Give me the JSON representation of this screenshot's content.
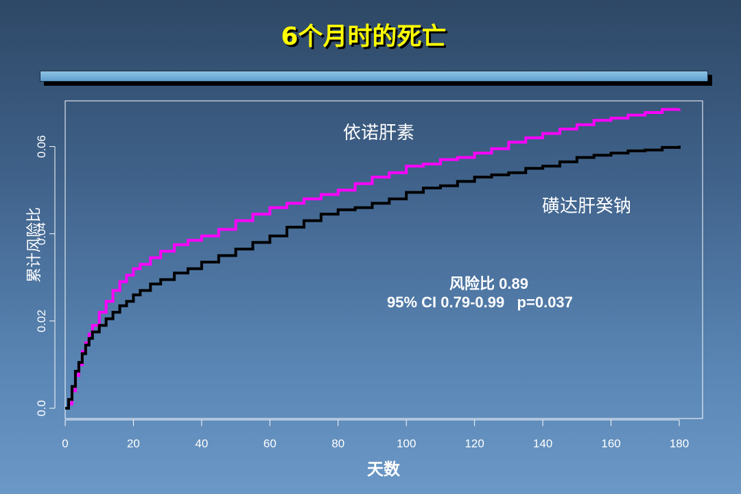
{
  "title": "6个月时的死亡",
  "chart_data": {
    "type": "line",
    "xlabel": "天数",
    "ylabel": "累计风险比",
    "xlim": [
      0,
      180
    ],
    "ylim": [
      0,
      0.07
    ],
    "x_ticks": [
      "0",
      "20",
      "40",
      "60",
      "80",
      "100",
      "120",
      "140",
      "160",
      "180"
    ],
    "x_tick_values": [
      0,
      20,
      40,
      60,
      80,
      100,
      120,
      140,
      160,
      180
    ],
    "y_ticks": [
      "0.0",
      "0.02",
      "0.04",
      "0.06"
    ],
    "y_tick_values": [
      0,
      0.02,
      0.04,
      0.06
    ],
    "grid": false,
    "series": [
      {
        "name": "依诺肝素",
        "color": "#ff00ff",
        "x": [
          0,
          1,
          2,
          3,
          4,
          5,
          6,
          7,
          8,
          10,
          12,
          14,
          16,
          18,
          20,
          22,
          25,
          28,
          32,
          36,
          40,
          45,
          50,
          55,
          60,
          65,
          70,
          75,
          80,
          85,
          90,
          95,
          100,
          105,
          110,
          115,
          120,
          125,
          130,
          135,
          140,
          145,
          150,
          155,
          160,
          165,
          170,
          175,
          180
        ],
        "y": [
          0,
          0.001,
          0.004,
          0.0075,
          0.01,
          0.013,
          0.015,
          0.017,
          0.019,
          0.022,
          0.0245,
          0.027,
          0.029,
          0.0305,
          0.032,
          0.033,
          0.0345,
          0.036,
          0.0375,
          0.0385,
          0.0395,
          0.041,
          0.043,
          0.0445,
          0.046,
          0.047,
          0.048,
          0.049,
          0.05,
          0.0515,
          0.053,
          0.054,
          0.0555,
          0.056,
          0.057,
          0.0575,
          0.0585,
          0.0595,
          0.061,
          0.062,
          0.063,
          0.064,
          0.065,
          0.066,
          0.0665,
          0.0672,
          0.0678,
          0.0685,
          0.0686
        ]
      },
      {
        "name": "磺达肝癸钠",
        "color": "#000000",
        "x": [
          0,
          1,
          2,
          3,
          4,
          5,
          6,
          7,
          8,
          10,
          12,
          14,
          16,
          18,
          20,
          22,
          25,
          28,
          32,
          36,
          40,
          45,
          50,
          55,
          60,
          65,
          70,
          75,
          80,
          85,
          90,
          95,
          100,
          105,
          110,
          115,
          120,
          125,
          130,
          135,
          140,
          145,
          150,
          155,
          160,
          165,
          170,
          175,
          180
        ],
        "y": [
          0,
          0.002,
          0.005,
          0.0085,
          0.0105,
          0.0125,
          0.0145,
          0.016,
          0.0175,
          0.019,
          0.0205,
          0.022,
          0.0235,
          0.0245,
          0.026,
          0.027,
          0.0285,
          0.0295,
          0.031,
          0.032,
          0.0335,
          0.035,
          0.0365,
          0.038,
          0.0395,
          0.0415,
          0.043,
          0.0445,
          0.0455,
          0.046,
          0.047,
          0.048,
          0.0495,
          0.0505,
          0.051,
          0.052,
          0.053,
          0.0535,
          0.054,
          0.055,
          0.0555,
          0.0565,
          0.0575,
          0.058,
          0.0585,
          0.059,
          0.0592,
          0.0598,
          0.0602
        ]
      }
    ],
    "annotations": {
      "hazard_ratio": "风险比 0.89",
      "ci_p": "95% CI 0.79-0.99   p=0.037"
    }
  }
}
